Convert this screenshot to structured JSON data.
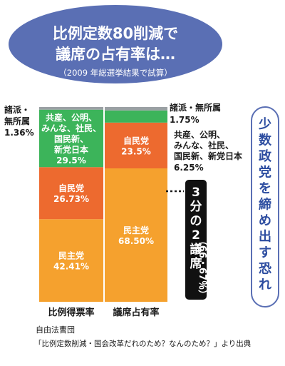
{
  "header": {
    "line1": "比例定数80削減で",
    "line2": "議席の占有率は…",
    "note": "（2009 年総選挙結果で試算）"
  },
  "side_caption_chars": [
    "少",
    "数",
    "政",
    "党",
    "を",
    "締",
    "め",
    "出",
    "す",
    "恐",
    "れ"
  ],
  "annotation": {
    "title_chars": [
      "3",
      "分",
      "の",
      "2",
      "議",
      "席"
    ],
    "value": "（66・67％）"
  },
  "source": {
    "line1": "自由法曹団",
    "line2": "「比例定数削減・国会改革だれのため？なんのため？」より出典"
  },
  "colors": {
    "minshu": "#f5a12e",
    "jimin": "#ed6a2f",
    "small": "#3cb45a",
    "other": "#9aa0a3",
    "bubble": "#5a6fb4",
    "ink": "#1a1a1a"
  },
  "chart_data": {
    "type": "bar",
    "stacked": true,
    "categories": [
      "比例得票率",
      "議席占有率"
    ],
    "series": [
      {
        "name": "民主党",
        "color": "#f5a12e",
        "values": [
          42.41,
          68.5
        ],
        "labels": [
          [
            "民主党",
            "42.41%"
          ],
          [
            "民主党",
            "68.50%"
          ]
        ]
      },
      {
        "name": "自民党",
        "color": "#ed6a2f",
        "values": [
          26.73,
          23.5
        ],
        "labels": [
          [
            "自民党",
            "26.73%"
          ],
          [
            "自民党",
            "23.5%"
          ]
        ]
      },
      {
        "name": "共産、公明、みんな、社民、国民新、新党日本",
        "color": "#3cb45a",
        "values": [
          29.5,
          6.25
        ],
        "labels": [
          [
            "共産、公明、",
            "みんな、社民、",
            "国民新、",
            "新党日本",
            "29.5%"
          ],
          [
            "共産、公明、",
            "みんな、社民、",
            "国民新、新党日本",
            "6.25%"
          ]
        ]
      },
      {
        "name": "諸派・無所属",
        "color": "#9aa0a3",
        "values": [
          1.36,
          1.75
        ],
        "labels": [
          [
            "諸派・",
            "無所属",
            "1.36%"
          ],
          [
            "諸派・無所属",
            "1.75%"
          ]
        ]
      }
    ],
    "ylim": [
      0,
      100
    ]
  }
}
